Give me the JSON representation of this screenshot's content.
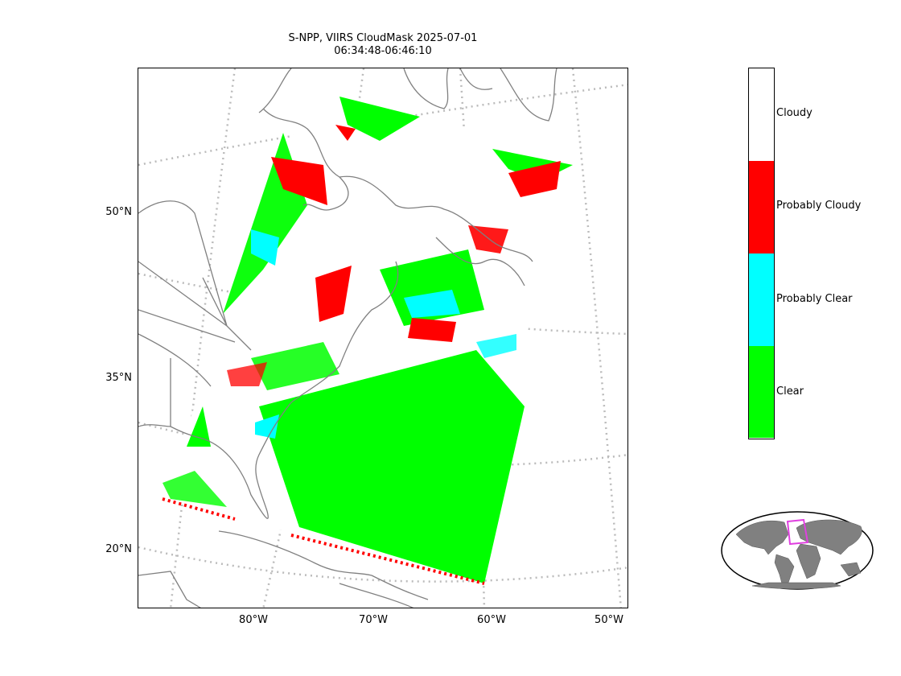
{
  "title": {
    "line1": "S-NPP, VIIRS CloudMask 2025-07-01",
    "line2": "06:34:48-06:46:10"
  },
  "lat_labels": [
    "50°N",
    "35°N",
    "20°N"
  ],
  "lon_labels": [
    "80°W",
    "70°W",
    "60°W",
    "50°W"
  ],
  "legend": {
    "categories": [
      {
        "label": "Cloudy",
        "color": "#ffffff"
      },
      {
        "label": "Probably Cloudy",
        "color": "#ff0000"
      },
      {
        "label": "Probably Clear",
        "color": "#00ffff"
      },
      {
        "label": "Clear",
        "color": "#00ff00"
      }
    ]
  },
  "colors": {
    "coastline": "#808080",
    "graticule": "#bbbbbb",
    "inset_land": "#808080",
    "inset_box": "#e040e0"
  }
}
